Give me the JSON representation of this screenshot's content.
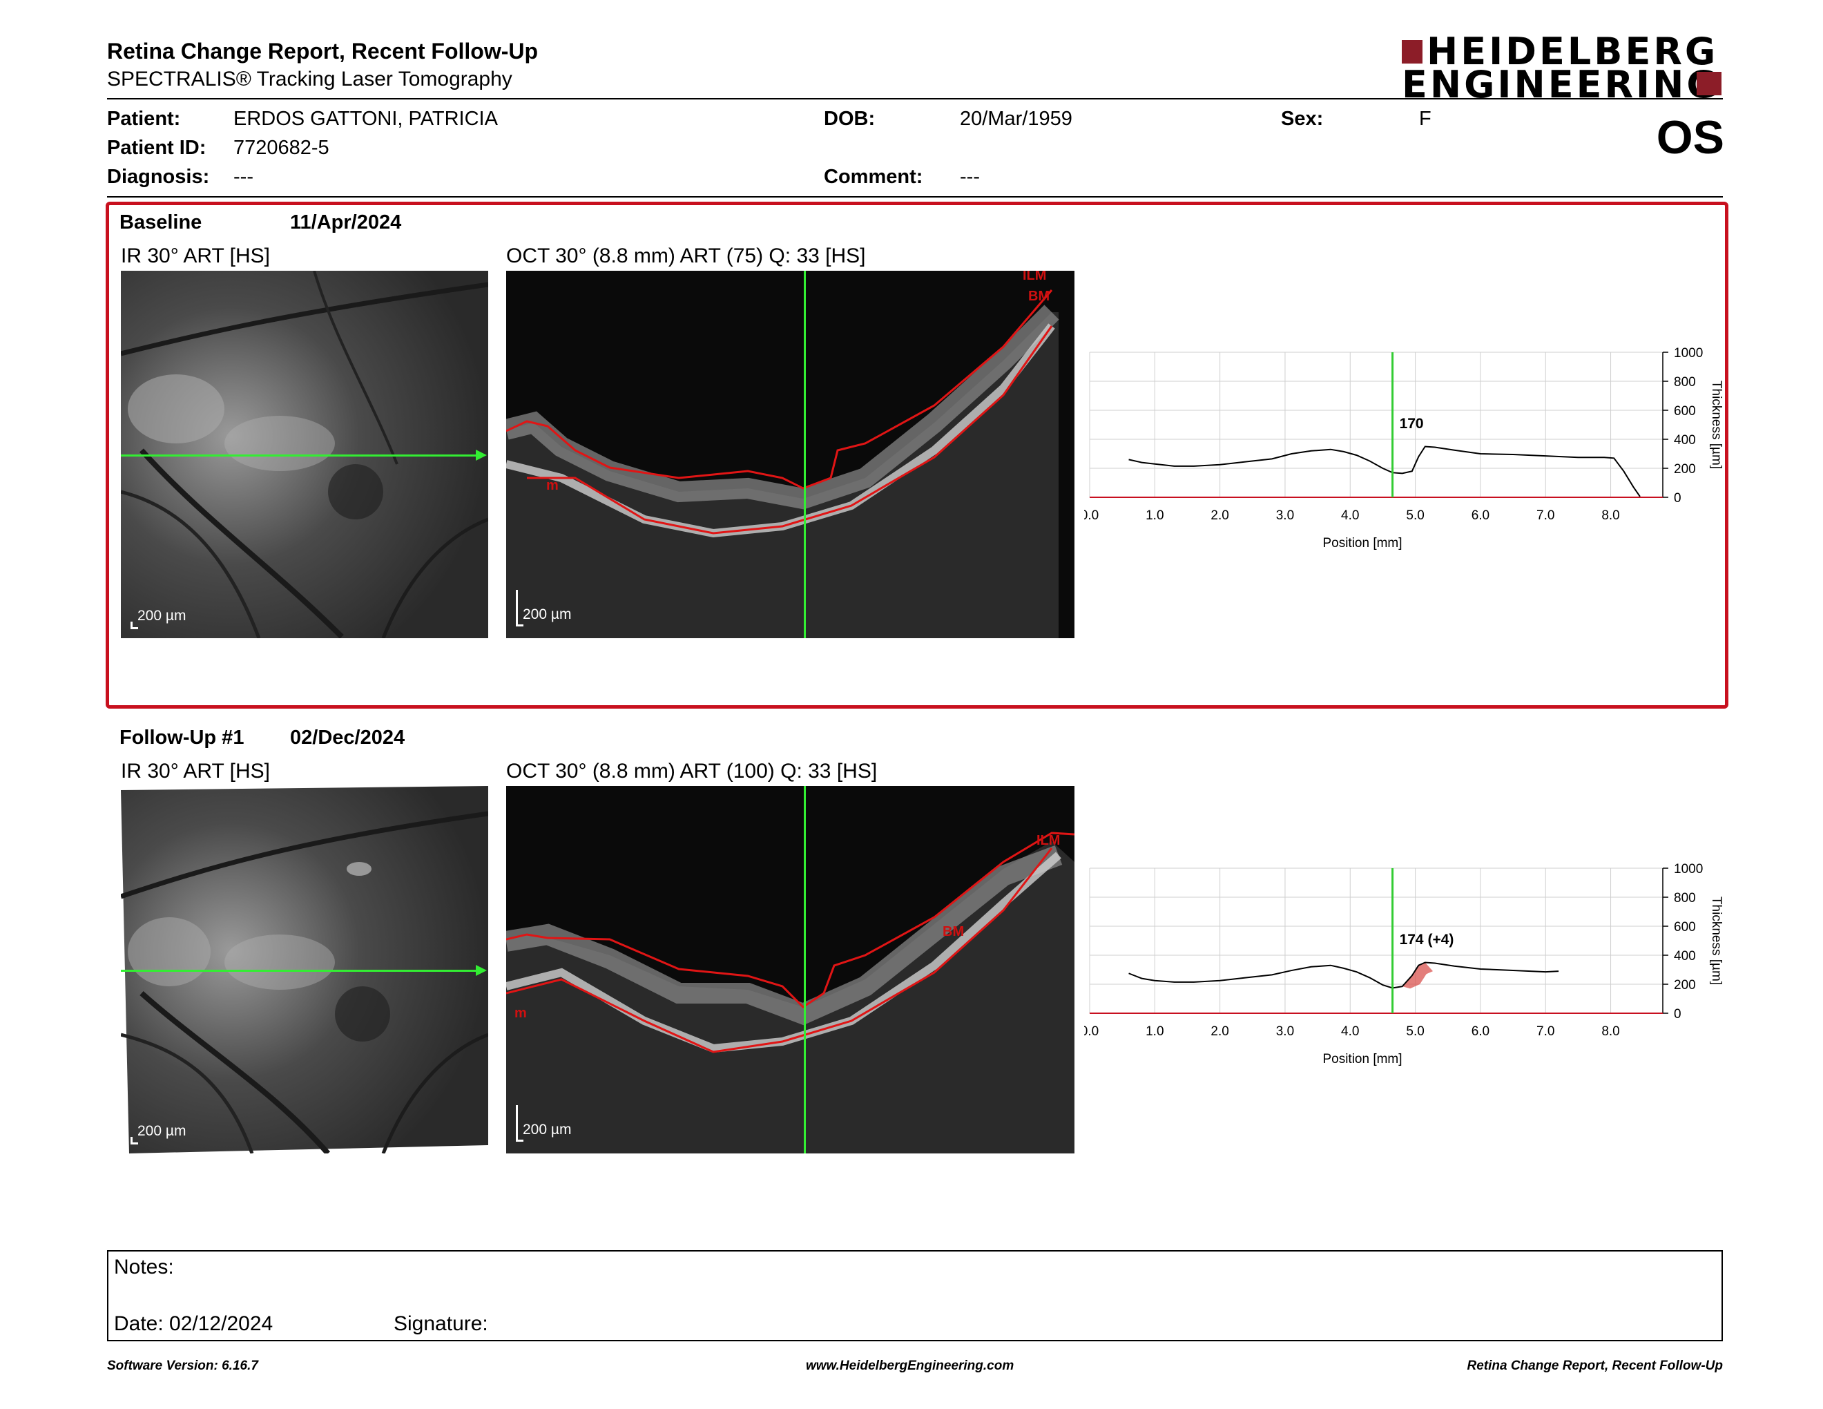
{
  "header": {
    "title": "Retina Change Report, Recent Follow-Up",
    "subtitle": "SPECTRALIS® Tracking Laser Tomography",
    "logo_line1": "HEIDELBERG",
    "logo_line2": "ENGINEERING",
    "eye": "OS"
  },
  "patient": {
    "name_label": "Patient:",
    "name": "ERDOS GATTONI, PATRICIA",
    "id_label": "Patient ID:",
    "id": "7720682-5",
    "diagnosis_label": "Diagnosis:",
    "diagnosis": "---",
    "dob_label": "DOB:",
    "dob": "20/Mar/1959",
    "comment_label": "Comment:",
    "comment": "---",
    "sex_label": "Sex:",
    "sex": "F"
  },
  "baseline": {
    "label": "Baseline",
    "date": "11/Apr/2024",
    "ir_label": "IR 30° ART [HS]",
    "oct_label": "OCT 30° (8.8 mm) ART (75) Q: 33 [HS]",
    "ir_scale": "200 µm",
    "oct_scale": "200 µm",
    "layer_labels": [
      "ILM",
      "BM",
      "m"
    ]
  },
  "followup": {
    "label": "Follow-Up #1",
    "date": "02/Dec/2024",
    "ir_label": "IR 30° ART [HS]",
    "oct_label": "OCT 30° (8.8 mm) ART (100) Q: 33 [HS]",
    "ir_scale": "200 µm",
    "oct_scale": "200 µm",
    "layer_labels": [
      "ILM",
      "BM",
      "m"
    ]
  },
  "chart_data": [
    {
      "type": "line",
      "xlabel": "Position [mm]",
      "ylabel": "Thickness [µm]",
      "xlim": [
        0,
        8.8
      ],
      "ylim": [
        0,
        1000
      ],
      "x_ticks": [
        "0.0",
        "1.0",
        "2.0",
        "3.0",
        "4.0",
        "5.0",
        "6.0",
        "7.0",
        "8.0"
      ],
      "y_ticks": [
        "0",
        "200",
        "400",
        "600",
        "800",
        "1000"
      ],
      "grid": true,
      "cursor_x": 4.65,
      "cursor_label": "170",
      "series": [
        {
          "x": [
            0.6,
            0.8,
            1.0,
            1.3,
            1.6,
            2.0,
            2.4,
            2.8,
            3.1,
            3.4,
            3.7,
            3.9,
            4.1,
            4.3,
            4.5,
            4.65,
            4.8,
            4.95,
            5.05,
            5.15,
            5.3,
            5.6,
            6.0,
            6.5,
            7.0,
            7.5,
            7.9,
            8.05,
            8.2,
            8.35,
            8.45
          ],
          "y": [
            260,
            240,
            230,
            215,
            215,
            225,
            245,
            265,
            300,
            320,
            330,
            315,
            290,
            250,
            200,
            170,
            165,
            180,
            280,
            350,
            345,
            325,
            300,
            295,
            285,
            275,
            275,
            270,
            180,
            70,
            5
          ]
        }
      ]
    },
    {
      "type": "line",
      "xlabel": "Position [mm]",
      "ylabel": "Thickness [µm]",
      "xlim": [
        0,
        8.8
      ],
      "ylim": [
        0,
        1000
      ],
      "x_ticks": [
        "0.0",
        "1.0",
        "2.0",
        "3.0",
        "4.0",
        "5.0",
        "6.0",
        "7.0",
        "8.0"
      ],
      "y_ticks": [
        "0",
        "200",
        "400",
        "600",
        "800",
        "1000"
      ],
      "grid": true,
      "cursor_x": 4.65,
      "cursor_label": "174 (+4)",
      "series": [
        {
          "x": [
            0.6,
            0.8,
            1.0,
            1.3,
            1.6,
            2.0,
            2.4,
            2.8,
            3.1,
            3.4,
            3.7,
            3.9,
            4.1,
            4.3,
            4.5,
            4.65,
            4.8,
            4.95,
            5.05,
            5.15,
            5.3,
            5.6,
            6.0,
            6.5,
            7.0,
            7.2
          ],
          "y": [
            275,
            240,
            225,
            215,
            215,
            225,
            245,
            265,
            295,
            320,
            330,
            310,
            285,
            245,
            195,
            174,
            185,
            260,
            330,
            350,
            345,
            325,
            305,
            295,
            285,
            290
          ]
        }
      ],
      "change_fill": "#d9534f"
    }
  ],
  "notes": {
    "label": "Notes:",
    "date_label": "Date: 02/12/2024",
    "signature_label": "Signature:"
  },
  "footer": {
    "left": "Software Version: 6.16.7",
    "center": "www.HeidelbergEngineering.com",
    "right": "Retina Change Report, Recent Follow-Up"
  },
  "colors": {
    "frame": "#c8101e",
    "cursor": "#33cc33",
    "layer": "#d01010",
    "logo": "#8c1d28"
  }
}
